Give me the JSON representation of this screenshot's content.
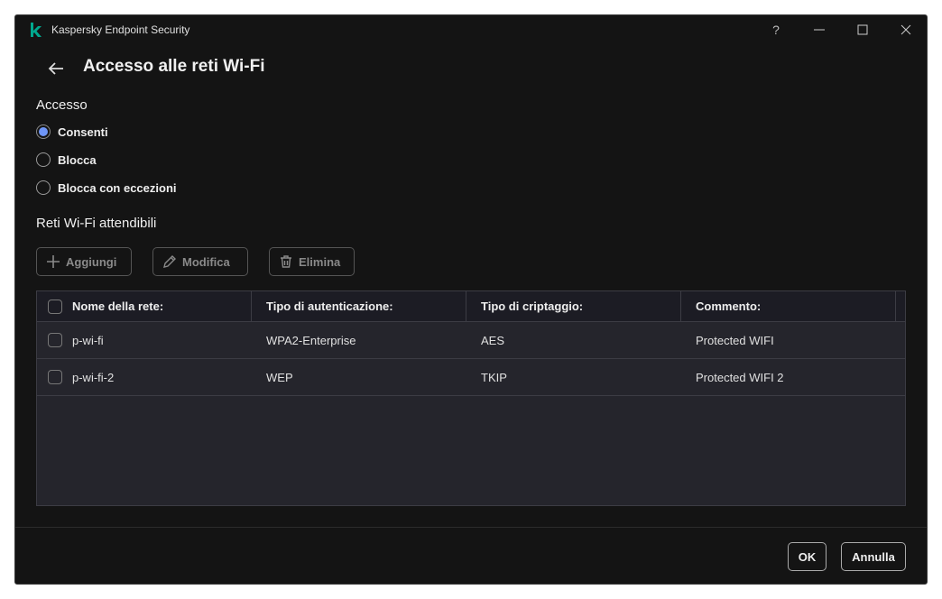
{
  "window": {
    "title": "Kaspersky Endpoint Security",
    "brand_color": "#00a88e",
    "controls": [
      "help-icon",
      "minimize-icon",
      "maximize-icon",
      "close-icon"
    ],
    "help_label": "?"
  },
  "page": {
    "title": "Accesso alle reti Wi-Fi"
  },
  "access": {
    "label": "Accesso",
    "options": [
      {
        "label": "Consenti",
        "selected": true
      },
      {
        "label": "Blocca",
        "selected": false
      },
      {
        "label": "Blocca con eccezioni",
        "selected": false
      }
    ],
    "accent": "#6f96f7"
  },
  "trusted": {
    "label": "Reti Wi-Fi attendibili"
  },
  "toolbar": {
    "add": "Aggiungi",
    "edit": "Modifica",
    "delete": "Elimina"
  },
  "table": {
    "columns": [
      "Nome della rete:",
      "Tipo di autenticazione:",
      "Tipo di criptaggio:",
      "Commento:"
    ],
    "rows": [
      [
        "p-wi-fi",
        "WPA2-Enterprise",
        "AES",
        "Protected WIFI"
      ],
      [
        "p-wi-fi-2",
        "WEP",
        "TKIP",
        "Protected WIFI 2"
      ]
    ]
  },
  "footer": {
    "ok": "OK",
    "cancel": "Annulla"
  }
}
